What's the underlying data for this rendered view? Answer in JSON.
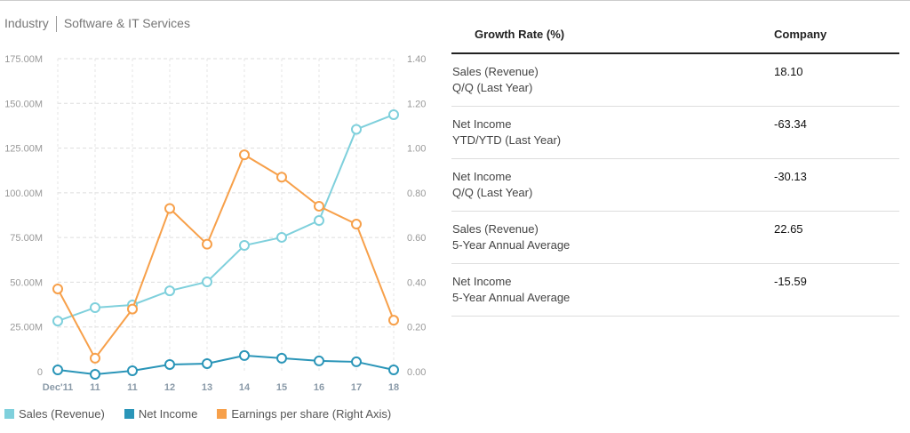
{
  "industry": {
    "label": "Industry",
    "value": "Software & IT Services"
  },
  "chart_data": {
    "type": "line",
    "categories": [
      "Dec'11",
      "11",
      "11",
      "12",
      "13",
      "14",
      "15",
      "16",
      "17",
      "18"
    ],
    "left_axis": {
      "range": [
        0,
        175
      ],
      "ticks": [
        "0",
        "25.00M",
        "50.00M",
        "75.00M",
        "100.00M",
        "125.00M",
        "150.00M",
        "175.00M"
      ],
      "unit": "M"
    },
    "right_axis": {
      "range": [
        0,
        1.4
      ],
      "ticks": [
        "0.00",
        "0.20",
        "0.40",
        "0.60",
        "0.80",
        "1.00",
        "1.20",
        "1.40"
      ]
    },
    "grid": true,
    "legend_placement": "bottom-left",
    "series": [
      {
        "name": "Sales (Revenue)",
        "axis": "left",
        "color": "#7fd0dc",
        "values": [
          28.3,
          35.8,
          37.3,
          45.2,
          50.2,
          70.6,
          75.1,
          84.5,
          135.5,
          143.7
        ]
      },
      {
        "name": "Net Income",
        "axis": "left",
        "color": "#2a95b8",
        "values": [
          1,
          -1.5,
          0.5,
          4,
          4.5,
          9,
          7.5,
          6,
          5.5,
          1
        ]
      },
      {
        "name": "Earnings per share (Right Axis)",
        "axis": "right",
        "color": "#f7a04a",
        "values": [
          0.37,
          0.06,
          0.28,
          0.73,
          0.57,
          0.97,
          0.87,
          0.74,
          0.66,
          0.23
        ]
      }
    ]
  },
  "table": {
    "headers": [
      "Growth Rate (%)",
      "Company"
    ],
    "rows": [
      {
        "l1": "Sales (Revenue)",
        "l2": "Q/Q (Last Year)",
        "value": "18.10"
      },
      {
        "l1": "Net Income",
        "l2": "YTD/YTD (Last Year)",
        "value": "-63.34"
      },
      {
        "l1": "Net Income",
        "l2": "Q/Q (Last Year)",
        "value": "-30.13"
      },
      {
        "l1": "Sales (Revenue)",
        "l2": "5-Year Annual Average",
        "value": "22.65"
      },
      {
        "l1": "Net Income",
        "l2": "5-Year Annual Average",
        "value": "-15.59"
      }
    ]
  }
}
